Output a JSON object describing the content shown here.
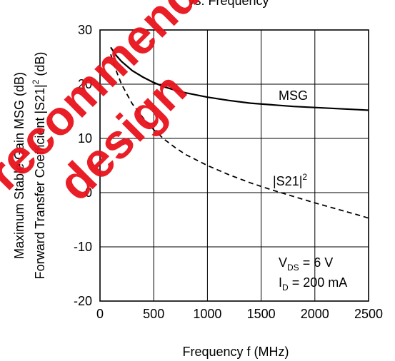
{
  "chart_data": {
    "type": "line",
    "title": "vs. Frequency",
    "xlabel": "Frequency  f (MHz)",
    "ylabel_line1": "Maximum Stable Gain MSG (dB)",
    "ylabel_line2_prefix": "Forward Transfer Coefficient  |S21|",
    "ylabel_line2_sup": "2",
    "ylabel_line2_suffix": "  (dB)",
    "xlim": [
      0,
      2500
    ],
    "ylim": [
      -20,
      30
    ],
    "x_ticks": [
      0,
      500,
      1000,
      1500,
      2000,
      2500
    ],
    "y_ticks": [
      -20,
      -10,
      0,
      10,
      20,
      30
    ],
    "grid": true,
    "series": [
      {
        "name": "MSG",
        "style": "solid",
        "x": [
          100,
          150,
          200,
          300,
          400,
          500,
          600,
          700,
          800,
          1000,
          1200,
          1400,
          1600,
          1800,
          2000,
          2200,
          2400,
          2500
        ],
        "y": [
          26.8,
          25.3,
          24.2,
          22.5,
          21.3,
          20.3,
          19.5,
          18.9,
          18.4,
          17.6,
          17.0,
          16.5,
          16.2,
          15.9,
          15.7,
          15.5,
          15.3,
          15.2
        ]
      },
      {
        "name": "|S21|",
        "name_sup": "2",
        "style": "dashed",
        "x": [
          100,
          150,
          200,
          300,
          400,
          500,
          600,
          700,
          800,
          1000,
          1200,
          1400,
          1600,
          1800,
          2000,
          2200,
          2400,
          2500
        ],
        "y": [
          25.5,
          22.5,
          20.0,
          16.4,
          13.8,
          11.6,
          9.8,
          8.3,
          7.0,
          5.0,
          3.3,
          1.8,
          0.5,
          -0.7,
          -1.9,
          -3.0,
          -4.1,
          -4.7
        ]
      }
    ],
    "annotations": {
      "vds_main": "V",
      "vds_sub": "DS",
      "vds_rest": " = 6 V",
      "id_main": "I",
      "id_sub": "D",
      "id_rest": " = 200 mA"
    },
    "colors": {
      "line": "#000000",
      "grid": "#000000",
      "watermark": "#e8131c"
    },
    "watermark": "recommended design"
  }
}
